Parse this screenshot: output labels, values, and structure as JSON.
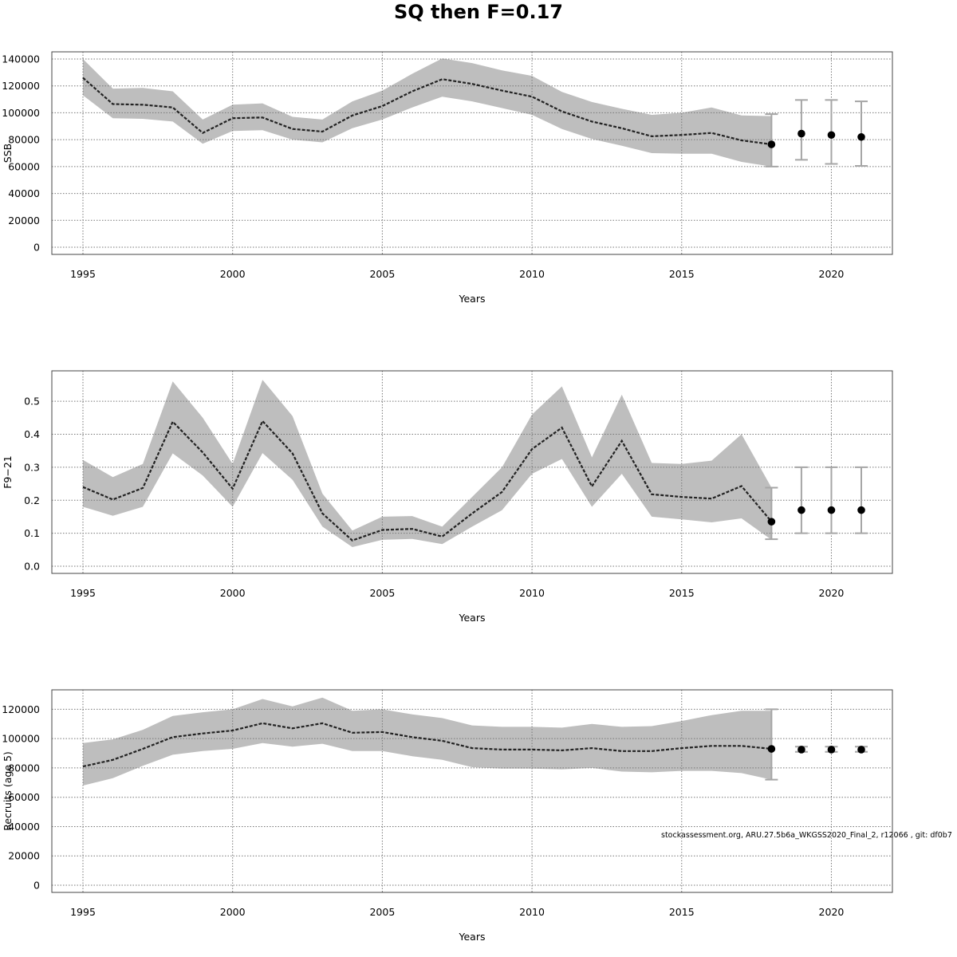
{
  "title": "SQ then F=0.17",
  "footnote": "stockassessment.org, ARU.27.5b6a_WKGSS2020_Final_2, r12066 , git: df0b7",
  "colors": {
    "band": "#bebebe",
    "line": "#222222",
    "grid": "#777777",
    "errbar": "#a6a6a6"
  },
  "chart_data": [
    {
      "type": "line",
      "xlabel": "Years",
      "ylabel": "SSB",
      "ylim": [
        0,
        140000
      ],
      "xlim": [
        1995,
        2021
      ],
      "x_ticks": [
        "1995",
        "2000",
        "2005",
        "2010",
        "2015",
        "2020"
      ],
      "y_ticks": [
        "0",
        "20000",
        "40000",
        "60000",
        "80000",
        "100000",
        "120000",
        "140000"
      ],
      "grid": true,
      "x": [
        1995,
        1996,
        1997,
        1998,
        1999,
        2000,
        2001,
        2002,
        2003,
        2004,
        2005,
        2006,
        2007,
        2008,
        2009,
        2010,
        2011,
        2012,
        2013,
        2014,
        2015,
        2016,
        2017,
        2018
      ],
      "estimate": [
        126000,
        106500,
        106000,
        104000,
        85000,
        96000,
        96500,
        88000,
        86000,
        98000,
        105000,
        116000,
        125000,
        121500,
        116500,
        112000,
        101000,
        93500,
        88500,
        82500,
        83500,
        85000,
        79500,
        76500
      ],
      "upper": [
        140000,
        118000,
        118500,
        116000,
        95000,
        106000,
        107000,
        97000,
        95000,
        108500,
        116500,
        129000,
        140500,
        137000,
        131500,
        127500,
        115500,
        108000,
        103000,
        98500,
        100000,
        104000,
        98000,
        97500
      ],
      "lower": [
        113000,
        96000,
        95500,
        93500,
        77000,
        86500,
        87000,
        80000,
        78000,
        88500,
        95000,
        104000,
        112000,
        108500,
        103500,
        98500,
        88000,
        80500,
        75500,
        70000,
        69500,
        69500,
        63500,
        60000
      ],
      "forecast": [
        {
          "year": 2018,
          "value": 76500,
          "low": 60000,
          "high": 99000
        },
        {
          "year": 2019,
          "value": 84500,
          "low": 65000,
          "high": 109500
        },
        {
          "year": 2020,
          "value": 83500,
          "low": 62000,
          "high": 109500
        },
        {
          "year": 2021,
          "value": 82000,
          "low": 60500,
          "high": 108500
        }
      ]
    },
    {
      "type": "line",
      "xlabel": "Years",
      "ylabel": "F9−21",
      "ylim": [
        0,
        0.56
      ],
      "xlim": [
        1995,
        2021
      ],
      "x_ticks": [
        "1995",
        "2000",
        "2005",
        "2010",
        "2015",
        "2020"
      ],
      "y_ticks": [
        "0.0",
        "0.1",
        "0.2",
        "0.3",
        "0.4",
        "0.5"
      ],
      "grid": true,
      "x": [
        1995,
        1996,
        1997,
        1998,
        1999,
        2000,
        2001,
        2002,
        2003,
        2004,
        2005,
        2006,
        2007,
        2008,
        2009,
        2010,
        2011,
        2012,
        2013,
        2014,
        2015,
        2016,
        2017,
        2018
      ],
      "estimate": [
        0.24,
        0.202,
        0.237,
        0.438,
        0.345,
        0.235,
        0.44,
        0.342,
        0.16,
        0.078,
        0.11,
        0.113,
        0.09,
        0.16,
        0.225,
        0.355,
        0.42,
        0.242,
        0.38,
        0.218,
        0.21,
        0.205,
        0.243,
        0.135
      ],
      "upper": [
        0.322,
        0.27,
        0.31,
        0.56,
        0.45,
        0.31,
        0.565,
        0.455,
        0.22,
        0.108,
        0.15,
        0.152,
        0.12,
        0.21,
        0.3,
        0.46,
        0.545,
        0.33,
        0.52,
        0.313,
        0.31,
        0.32,
        0.4,
        0.238
      ],
      "lower": [
        0.18,
        0.153,
        0.18,
        0.342,
        0.275,
        0.18,
        0.343,
        0.262,
        0.12,
        0.058,
        0.08,
        0.083,
        0.067,
        0.12,
        0.17,
        0.28,
        0.325,
        0.18,
        0.28,
        0.15,
        0.142,
        0.133,
        0.145,
        0.08
      ],
      "forecast": [
        {
          "year": 2018,
          "value": 0.135,
          "low": 0.082,
          "high": 0.238
        },
        {
          "year": 2019,
          "value": 0.17,
          "low": 0.1,
          "high": 0.3
        },
        {
          "year": 2020,
          "value": 0.17,
          "low": 0.1,
          "high": 0.3
        },
        {
          "year": 2021,
          "value": 0.17,
          "low": 0.1,
          "high": 0.3
        }
      ]
    },
    {
      "type": "line",
      "xlabel": "Years",
      "ylabel": "Recruits (age 5)",
      "ylim": [
        0,
        130000
      ],
      "xlim": [
        1995,
        2021
      ],
      "x_ticks": [
        "1995",
        "2000",
        "2005",
        "2010",
        "2015",
        "2020"
      ],
      "y_ticks": [
        "0",
        "20000",
        "40000",
        "60000",
        "80000",
        "100000",
        "120000"
      ],
      "grid": true,
      "x": [
        1995,
        1996,
        1997,
        1998,
        1999,
        2000,
        2001,
        2002,
        2003,
        2004,
        2005,
        2006,
        2007,
        2008,
        2009,
        2010,
        2011,
        2012,
        2013,
        2014,
        2015,
        2016,
        2017,
        2018
      ],
      "estimate": [
        81000,
        85500,
        93000,
        101000,
        103500,
        105500,
        110500,
        107000,
        110500,
        104000,
        104500,
        101000,
        98500,
        93500,
        92500,
        92500,
        92000,
        93500,
        91500,
        91500,
        93500,
        95000,
        95000,
        93000
      ],
      "upper": [
        97000,
        99500,
        106000,
        115500,
        118000,
        120000,
        127000,
        122000,
        128000,
        119000,
        120000,
        116500,
        114000,
        109000,
        108000,
        108000,
        107500,
        110000,
        108000,
        108500,
        112000,
        116000,
        119000,
        119000
      ],
      "lower": [
        68000,
        73000,
        81500,
        89000,
        91500,
        93000,
        97000,
        94500,
        96500,
        91500,
        91500,
        88000,
        85500,
        80500,
        79500,
        79500,
        79000,
        80000,
        77500,
        77000,
        78000,
        78000,
        76500,
        72000
      ],
      "forecast": [
        {
          "year": 2018,
          "value": 93000,
          "low": 72000,
          "high": 120000
        },
        {
          "year": 2019,
          "value": 92500,
          "low": 91000,
          "high": 94500
        },
        {
          "year": 2020,
          "value": 92500,
          "low": 91000,
          "high": 94500
        },
        {
          "year": 2021,
          "value": 92500,
          "low": 91000,
          "high": 94500
        }
      ]
    }
  ]
}
